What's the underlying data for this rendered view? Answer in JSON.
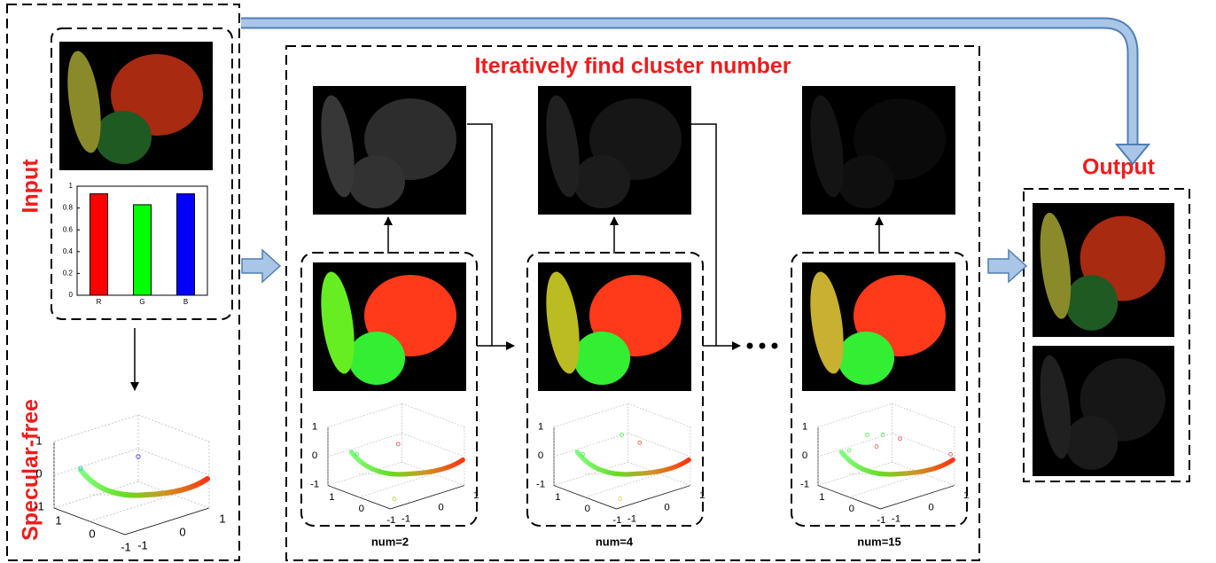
{
  "left_panel": {
    "input_label": "Input",
    "specular_label": "Specular-free"
  },
  "histogram": {
    "type": "bar",
    "categories": [
      "R",
      "G",
      "B"
    ],
    "values": [
      0.93,
      0.83,
      0.93
    ],
    "colors": [
      "#ff0000",
      "#00ff00",
      "#0000ff"
    ],
    "ylim": [
      0,
      1
    ],
    "yticks": [
      0,
      0.2,
      0.4,
      0.6,
      0.8,
      1
    ]
  },
  "plot3d": {
    "zticks": [
      1,
      0,
      -1
    ],
    "yticks": [
      1,
      0,
      -1
    ],
    "xticks": [
      -1,
      0,
      1
    ]
  },
  "middle_panel": {
    "title": "Iteratively find cluster number",
    "steps": [
      {
        "label": "num=2"
      },
      {
        "label": "num=4"
      },
      {
        "label": "num=15"
      }
    ]
  },
  "output": {
    "title": "Output"
  }
}
